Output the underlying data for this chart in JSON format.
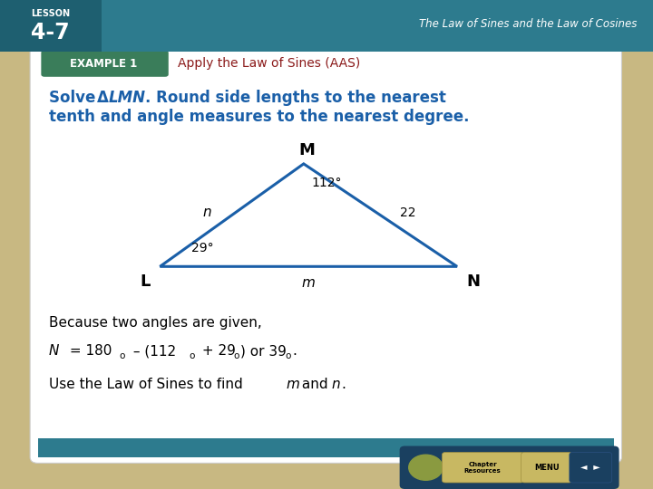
{
  "bg_outer_color": "#c8b882",
  "bg_inner_color": "#ffffff",
  "teal_color": "#2d7b8e",
  "teal_dark": "#1e5f70",
  "green_box_color": "#3a7d5a",
  "header_text": "EXAMPLE 1",
  "example_title": "Apply the Law of Sines (AAS)",
  "example_title_color": "#8b1a1a",
  "lesson_label": "LESSON",
  "lesson_number": "4-7",
  "chapter_title": "The Law of Sines and the Law of Cosines",
  "main_text_color": "#1a5fa8",
  "triangle_color": "#1a5fa8",
  "tri_L": [
    0.245,
    0.455
  ],
  "tri_M": [
    0.465,
    0.665
  ],
  "tri_N": [
    0.7,
    0.455
  ],
  "bottom_text_color": "#000000",
  "footer_teal": "#2d7b8e"
}
